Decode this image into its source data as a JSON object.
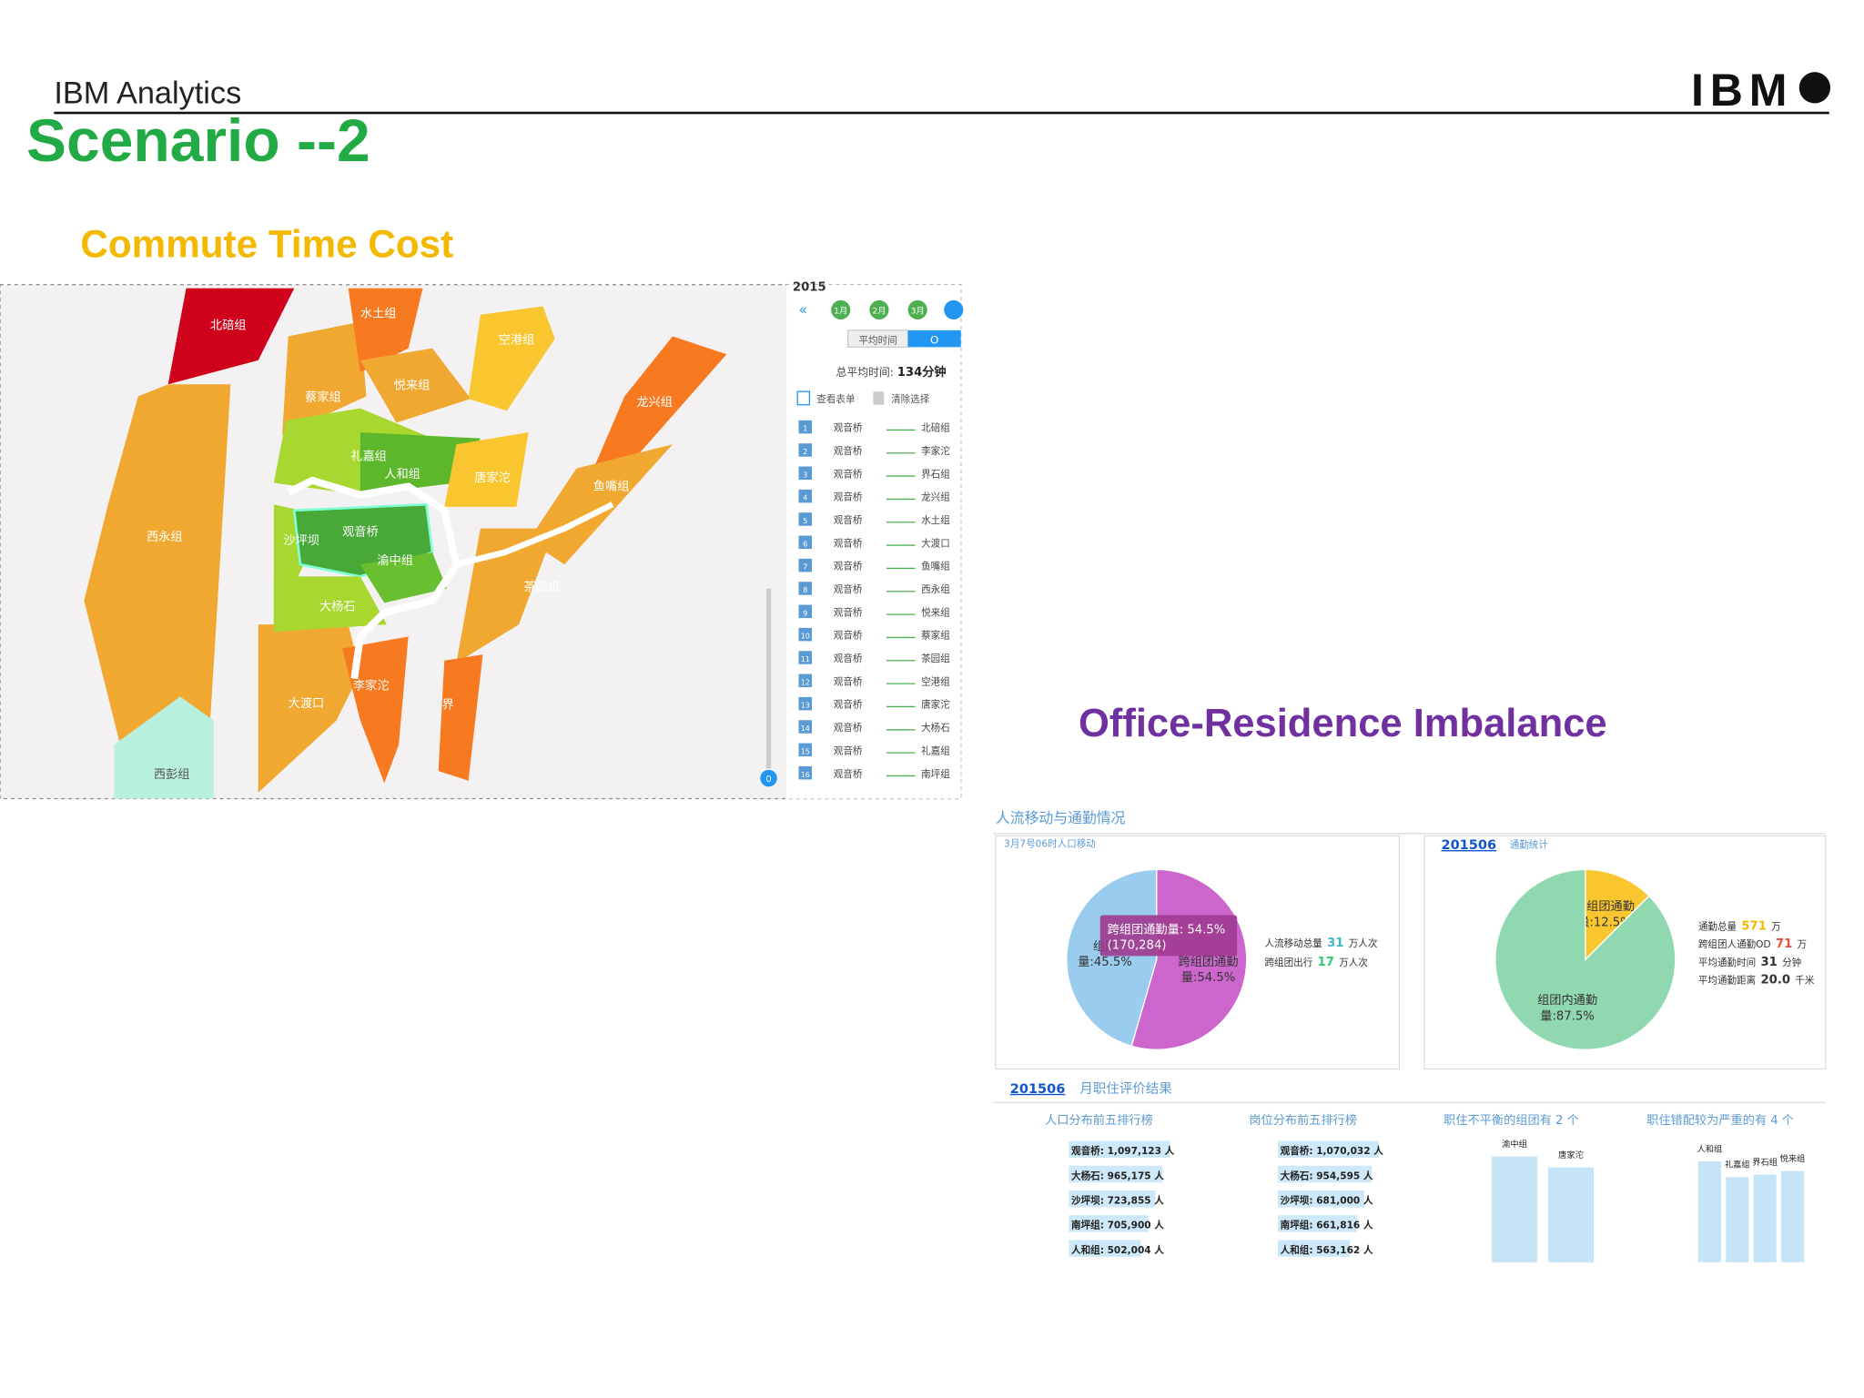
{
  "header": {
    "brand": "IBM Analytics",
    "logo": "IBM",
    "title": "Scenario --2"
  },
  "commute": {
    "heading": "Commute Time Cost",
    "map_labels": [
      "北碚组",
      "水土组",
      "空港组",
      "蔡家组",
      "悦来组",
      "龙兴组",
      "礼嘉组",
      "人和组",
      "唐家沱",
      "鱼嘴组",
      "西永组",
      "观音桥",
      "沙坪坝",
      "渝中组",
      "茶园组",
      "大杨石",
      "李家沱",
      "大渡口",
      "西彭组",
      "界"
    ],
    "panel": {
      "year": "2015",
      "months": [
        "1月",
        "2月",
        "3月"
      ],
      "tab": "平均时间",
      "tab_value": "O",
      "total_label": "总平均时间:",
      "total_value": "134分钟",
      "view": "查看表单",
      "clear": "清除选择",
      "slider_zero": "0",
      "rows": [
        [
          "1",
          "观音桥",
          "北碚组"
        ],
        [
          "2",
          "观音桥",
          "李家沱"
        ],
        [
          "3",
          "观音桥",
          "界石组"
        ],
        [
          "4",
          "观音桥",
          "龙兴组"
        ],
        [
          "5",
          "观音桥",
          "水土组"
        ],
        [
          "6",
          "观音桥",
          "大渡口"
        ],
        [
          "7",
          "观音桥",
          "鱼嘴组"
        ],
        [
          "8",
          "观音桥",
          "西永组"
        ],
        [
          "9",
          "观音桥",
          "悦来组"
        ],
        [
          "10",
          "观音桥",
          "蔡家组"
        ],
        [
          "11",
          "观音桥",
          "茶园组"
        ],
        [
          "12",
          "观音桥",
          "空港组"
        ],
        [
          "13",
          "观音桥",
          "唐家沱"
        ],
        [
          "14",
          "观音桥",
          "大杨石"
        ],
        [
          "15",
          "观音桥",
          "礼嘉组"
        ],
        [
          "16",
          "观音桥",
          "南坪组"
        ]
      ]
    }
  },
  "imbalance": {
    "heading": "Office-Residence Imbalance",
    "flow_title": "人流移动与通勤情况",
    "flow_subtitle": "3月7号06时人口移动",
    "pie1": {
      "slices": [
        {
          "value": 54.5,
          "color": "#cc66cc",
          "lines": [
            "跨组团通勤",
            "量:54.5%"
          ]
        },
        {
          "value": 45.5,
          "color": "#99ccee",
          "lines": [
            "组团",
            "量:45.5%"
          ]
        }
      ],
      "tooltip": [
        "跨组团通勤量: 54.5%",
        "(170,284)"
      ]
    },
    "flow_stats": [
      [
        "人流移动总量",
        "31",
        "万人次"
      ],
      [
        "跨组团出行",
        "17",
        "万人次"
      ]
    ],
    "stat_period": "201506",
    "stat_title": "通勤统计",
    "pie2": {
      "slices": [
        {
          "value": 12.5,
          "color": "#f9c630",
          "lines": [
            "跨组团通勤",
            "量:12.5%"
          ]
        },
        {
          "value": 87.5,
          "color": "#90d8b0",
          "lines": [
            "组团内通勤",
            "量:87.5%"
          ]
        }
      ]
    },
    "commute_stats": [
      [
        "通勤总量",
        "571",
        "万"
      ],
      [
        "跨组团人通勤OD",
        "71",
        "万"
      ],
      [
        "平均通勤时间",
        "31",
        "分钟"
      ],
      [
        "平均通勤距离",
        "20.0",
        "千米"
      ]
    ],
    "eval_period": "201506",
    "eval_title": "月职住评价结果",
    "columns": [
      "人口分布前五排行榜",
      "岗位分布前五排行榜",
      "职住不平衡的组团有 2 个",
      "职住错配较为严重的有 4 个"
    ],
    "population": [
      "观音桥: 1,097,123 人",
      "大杨石: 965,175 人",
      "沙坪坝: 723,855 人",
      "南坪组: 705,900 人",
      "人和组: 502,004 人"
    ],
    "jobs": [
      "观音桥: 1,070,032 人",
      "大杨石: 954,595 人",
      "沙坪坝: 681,000 人",
      "南坪组: 661,816 人",
      "人和组: 563,162 人"
    ],
    "imbalanced": [
      "渝中组",
      "唐家沱"
    ],
    "mismatched": [
      "人和组",
      "礼嘉组",
      "界石组",
      "悦来组"
    ]
  }
}
